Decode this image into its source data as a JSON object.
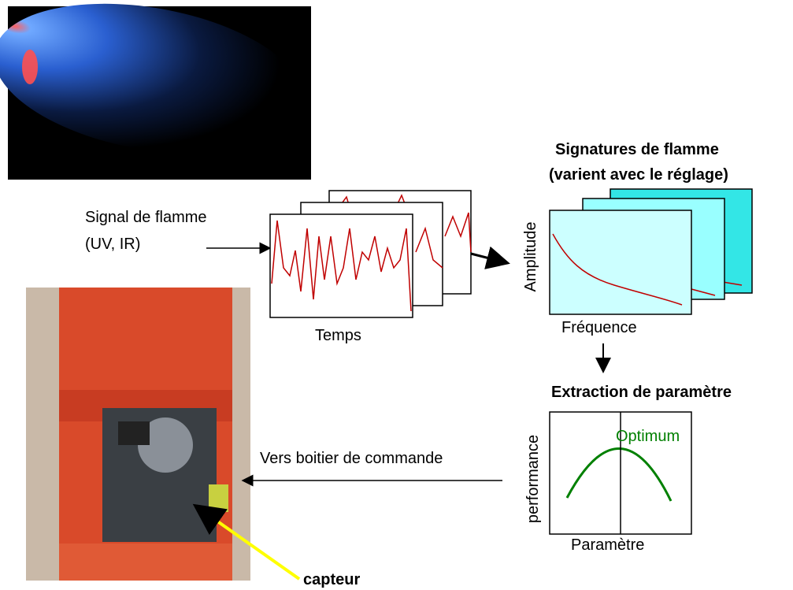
{
  "input": {
    "label": "Signal de flamme",
    "sublabel": "(UV, IR)"
  },
  "time_panel": {
    "axis_label": "Temps"
  },
  "signatures": {
    "title": "Signatures de flamme",
    "subtitle": "(varient avec le réglage)",
    "y_label": "Amplitude",
    "x_label": "Fréquence"
  },
  "extraction": {
    "title": "Extraction de paramètre",
    "y_label": "performance",
    "x_label": "Paramètre",
    "annotation": "Optimum"
  },
  "output": {
    "label": "Vers boitier de commande"
  },
  "sensor": {
    "label": "capteur"
  }
}
